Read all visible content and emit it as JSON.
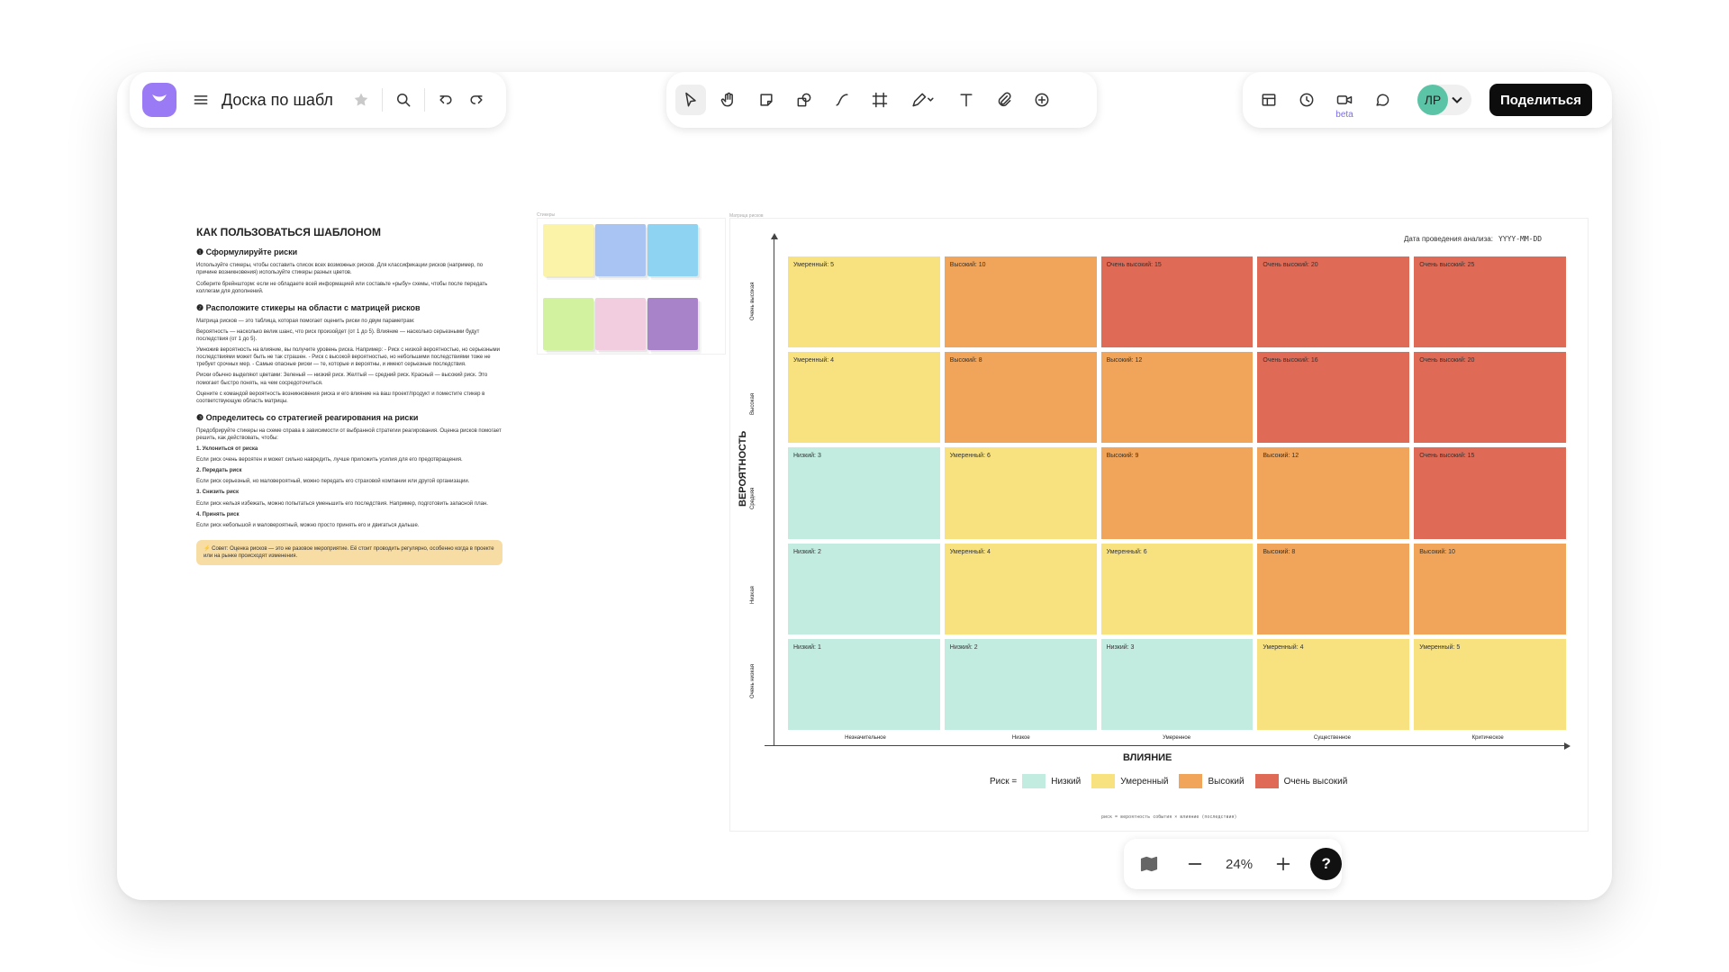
{
  "app": {
    "board_title": "Доска по шабл",
    "share_label": "Поделиться",
    "avatar_initials": "ЛР",
    "beta_label": "beta",
    "zoom_level": "24%",
    "help_label": "?"
  },
  "instructions": {
    "title": "КАК ПОЛЬЗОВАТЬСЯ ШАБЛОНОМ",
    "s1_title": "❶ Сформулируйте риски",
    "s1_p1": "Используйте стикеры, чтобы составить список всех возможных рисков. Для классификации рисков (например, по причине возникновения) используйте стикеры разных цветов.",
    "s1_p2": "Соберите брейншторм: если не обладаете всей информацией или составьте «рыбу» схемы, чтобы после передать коллегам для дополнений.",
    "s2_title": "❷ Расположите стикеры на области с матрицей рисков",
    "s2_p1": "Матрица рисков — это таблица, которая помогает оценить риски по двум параметрам:",
    "s2_p2": "Вероятность — насколько велик шанс, что риск произойдет (от 1 до 5). Влияние — насколько серьезными будут последствия (от 1 до 5).",
    "s2_p3": "Умножив вероятность на влияние, вы получите уровень риска. Например: - Риск с низкой вероятностью, но серьезными последствиями может быть не так страшен. - Риск с высокой вероятностью, но небольшими последствиями тоже не требует срочных мер. - Самые опасные риски — те, которые и вероятны, и имеют серьезные последствия.",
    "s2_p4": "Риски обычно выделяют цветами: Зеленый — низкий риск. Желтый — средний риск. Красный — высокий риск. Это помогает быстро понять, на чем сосредоточиться.",
    "s2_p5": "Оцените с командой вероятность возникновения риска и его влияние на ваш проект/продукт и поместите стикер в соответствующую область матрицы.",
    "s3_title": "❸ Определитесь со стратегией реагирования на риски",
    "s3_p1": "Предобрируйте стикеры на схеме справа в зависимости от выбранной стратегии реагирования. Оценка рисков помогает решить, как действовать, чтобы:",
    "s3_i1": "1. Уклониться от риска",
    "s3_i1d": "Если риск очень вероятен и может сильно навредить, лучше приложить усилия для его предотвращения.",
    "s3_i2": "2. Передать риск",
    "s3_i2d": "Если риск серьезный, но маловероятный, можно передать его страховой компании или другой организации.",
    "s3_i3": "3. Снизить риск",
    "s3_i3d": "Если риск нельзя избежать, можно попытаться уменьшить его последствия. Например, подготовить запасной план.",
    "s3_i4": "4. Принять риск",
    "s3_i4d": "Если риск небольшой и маловероятный, можно просто принять его и двигаться дальше.",
    "tip": "⚡ Совет: Оценка рисков — это не разовое мероприятие. Её стоит проводить регулярно, особенно когда в проекте или на рынке происходят изменения."
  },
  "palette": {
    "label": "Стикеры",
    "colors": [
      "#fbf3a8",
      "#a9c4f2",
      "#8fd3f3",
      "#d2f2a0",
      "#f2cde0",
      "#a883c9"
    ]
  },
  "matrix": {
    "frame_label": "Матрица рисков",
    "date_label": "Дата проведения анализа:",
    "date_value": "YYYY-MM-DD",
    "y_label": "ВЕРОЯТНОСТЬ",
    "x_label": "ВЛИЯНИЕ",
    "y_ticks": [
      "Очень высокая",
      "Высокая",
      "Средняя",
      "Низкая",
      "Очень низкая"
    ],
    "x_ticks": [
      "Незначительное",
      "Низкое",
      "Умеренное",
      "Существенное",
      "Критическое"
    ],
    "rows": [
      [
        {
          "t": "Умеренный: 5",
          "c": "mod"
        },
        {
          "t": "Высокий: 10",
          "c": "high"
        },
        {
          "t": "Очень высокий: 15",
          "c": "vhigh"
        },
        {
          "t": "Очень высокий: 20",
          "c": "vhigh"
        },
        {
          "t": "Очень высокий: 25",
          "c": "vhigh"
        }
      ],
      [
        {
          "t": "Умеренный: 4",
          "c": "mod"
        },
        {
          "t": "Высокий: 8",
          "c": "high"
        },
        {
          "t": "Высокий: 12",
          "c": "high"
        },
        {
          "t": "Очень высокий: 16",
          "c": "vhigh"
        },
        {
          "t": "Очень высокий: 20",
          "c": "vhigh"
        }
      ],
      [
        {
          "t": "Низкий: 3",
          "c": "low"
        },
        {
          "t": "Умеренный: 6",
          "c": "mod"
        },
        {
          "t": "Высокий: 9",
          "c": "high"
        },
        {
          "t": "Высокий: 12",
          "c": "high"
        },
        {
          "t": "Очень высокий: 15",
          "c": "vhigh"
        }
      ],
      [
        {
          "t": "Низкий: 2",
          "c": "low"
        },
        {
          "t": "Умеренный: 4",
          "c": "mod"
        },
        {
          "t": "Умеренный: 6",
          "c": "mod"
        },
        {
          "t": "Высокий: 8",
          "c": "high"
        },
        {
          "t": "Высокий: 10",
          "c": "high"
        }
      ],
      [
        {
          "t": "Низкий: 1",
          "c": "low"
        },
        {
          "t": "Низкий: 2",
          "c": "low"
        },
        {
          "t": "Низкий: 3",
          "c": "low"
        },
        {
          "t": "Умеренный: 4",
          "c": "mod"
        },
        {
          "t": "Умеренный: 5",
          "c": "mod"
        }
      ]
    ],
    "legend_prefix": "Риск =",
    "legend": [
      {
        "label": "Низкий",
        "color": "#c2ece0"
      },
      {
        "label": "Умеренный",
        "color": "#f8e27f"
      },
      {
        "label": "Высокий",
        "color": "#f0a55a"
      },
      {
        "label": "Очень высокий",
        "color": "#df6a55"
      }
    ],
    "formula": "риск = вероятность события × влияние (последствия)"
  },
  "colors": {
    "accent": "#9b7bf5",
    "avatar": "#5cc4a6"
  }
}
